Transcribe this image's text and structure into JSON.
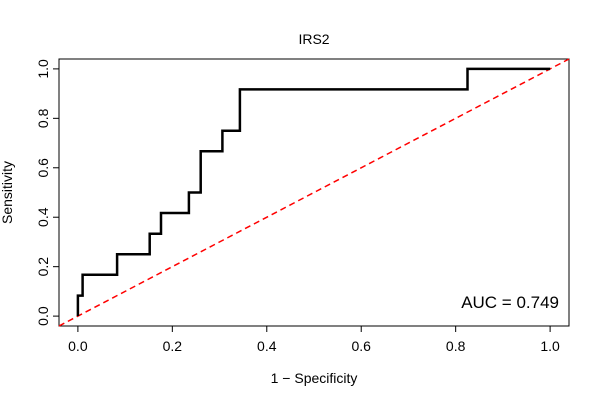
{
  "chart_data": {
    "type": "line",
    "title": "IRS2",
    "xlabel": "1 − Specificity",
    "ylabel": "Sensitivity",
    "xlim": [
      -0.04,
      1.04
    ],
    "ylim": [
      -0.04,
      1.04
    ],
    "xticks": [
      0.0,
      0.2,
      0.4,
      0.6,
      0.8,
      1.0
    ],
    "yticks": [
      0.0,
      0.2,
      0.4,
      0.6,
      0.8,
      1.0
    ],
    "xtick_labels": [
      "0.0",
      "0.2",
      "0.4",
      "0.6",
      "0.8",
      "1.0"
    ],
    "ytick_labels": [
      "0.0",
      "0.2",
      "0.4",
      "0.6",
      "0.8",
      "1.0"
    ],
    "series": [
      {
        "name": "ROC curve",
        "color": "#000000",
        "style": "solid",
        "x": [
          0.0,
          0.0,
          0.0,
          0.01,
          0.01,
          0.083,
          0.083,
          0.152,
          0.152,
          0.176,
          0.176,
          0.235,
          0.235,
          0.26,
          0.26,
          0.306,
          0.306,
          0.343,
          0.343,
          0.825,
          0.825,
          1.0
        ],
        "y": [
          0.0,
          0.0,
          0.083,
          0.083,
          0.167,
          0.167,
          0.25,
          0.25,
          0.333,
          0.333,
          0.417,
          0.417,
          0.5,
          0.5,
          0.667,
          0.667,
          0.75,
          0.75,
          0.917,
          0.917,
          1.0,
          1.0
        ]
      },
      {
        "name": "Reference diagonal",
        "color": "#ff0000",
        "style": "dashed",
        "x": [
          -0.04,
          1.04
        ],
        "y": [
          -0.04,
          1.04
        ]
      }
    ],
    "annotation": "AUC = 0.749"
  }
}
